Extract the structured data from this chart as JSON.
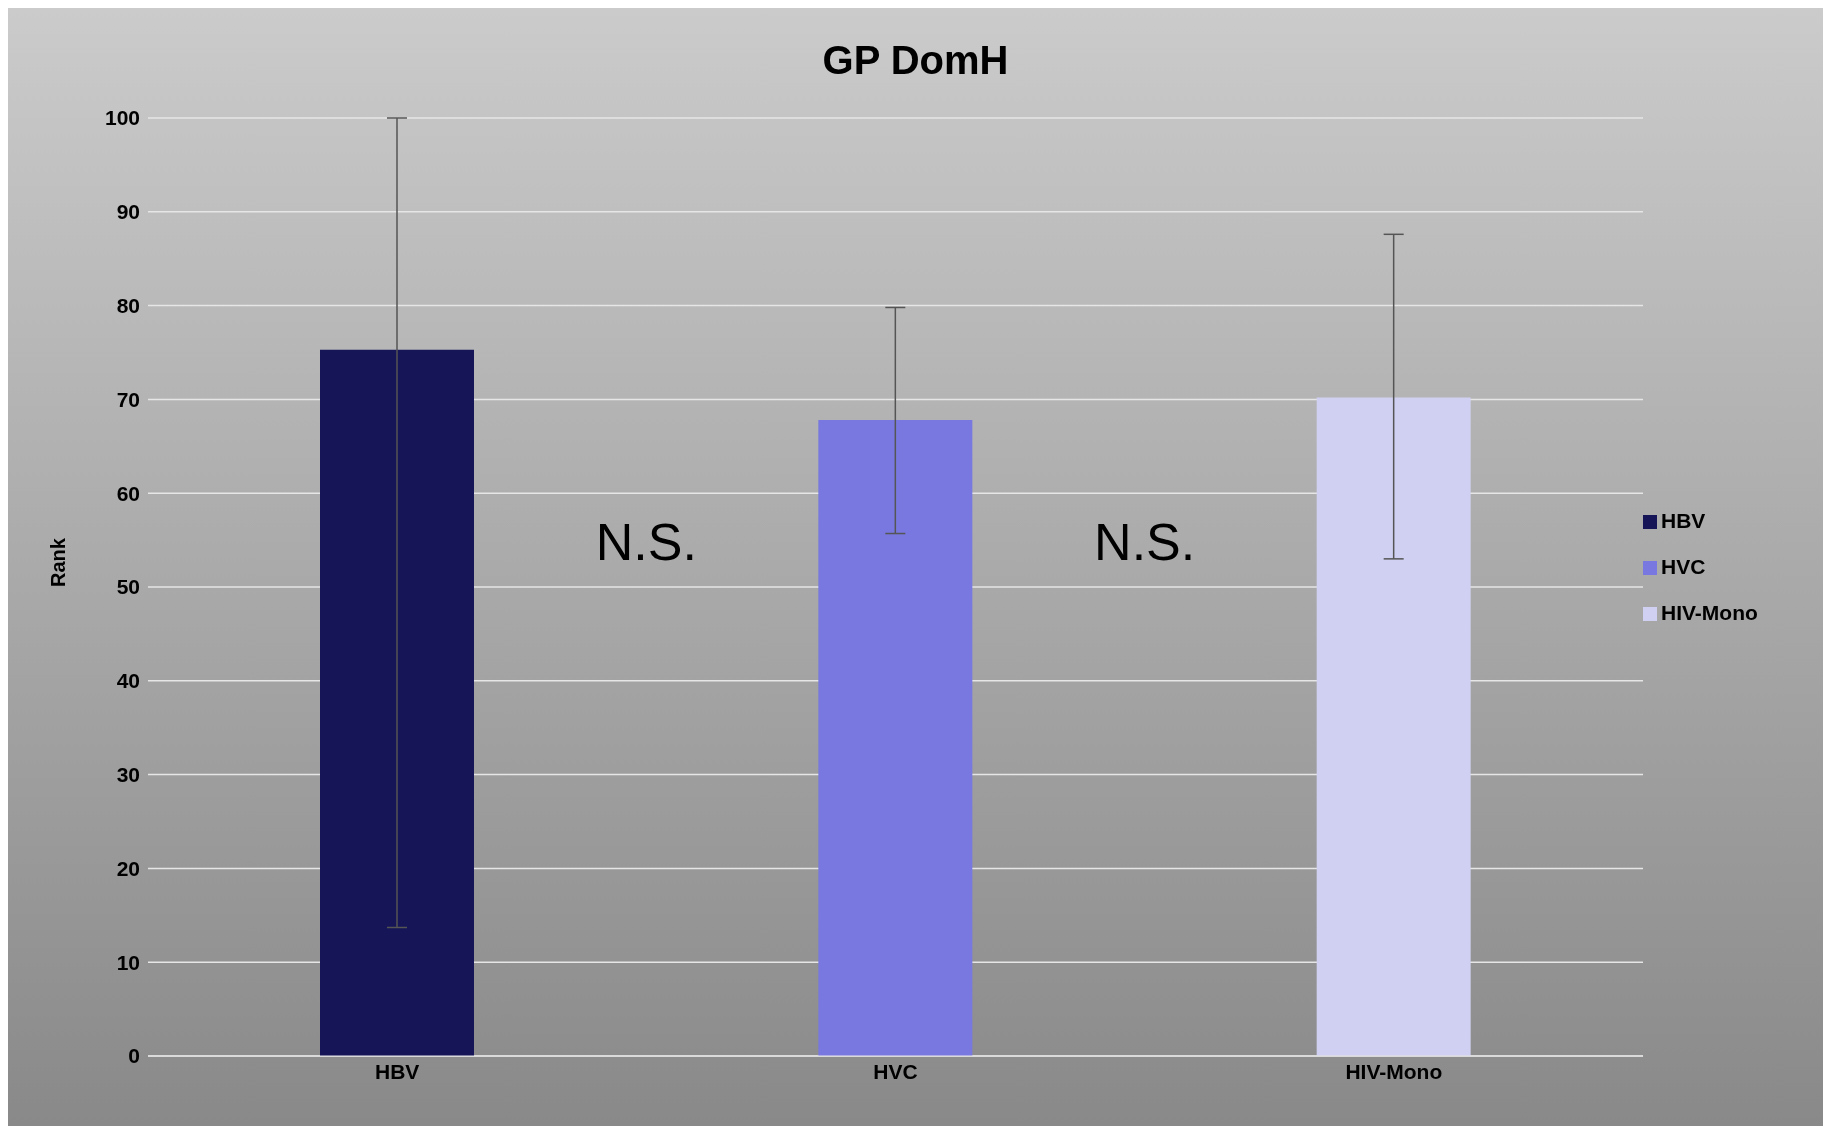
{
  "chart_data": {
    "type": "bar",
    "title": "GP DomH",
    "ylabel": "Rank",
    "categories": [
      "HBV",
      "HVC",
      "HIV-Mono"
    ],
    "series": [
      {
        "name": "HBV",
        "color": "#151558",
        "values": [
          75.3,
          null,
          null
        ],
        "errors": [
          [
            13.7,
            100
          ],
          null,
          null
        ]
      },
      {
        "name": "HVC",
        "color": "#7878e0",
        "values": [
          null,
          67.8,
          null
        ],
        "errors": [
          null,
          [
            55.7,
            79.8
          ],
          null
        ]
      },
      {
        "name": "HIV-Mono",
        "color": "#d0d0f2",
        "values": [
          null,
          null,
          70.2
        ],
        "errors": [
          null,
          null,
          [
            53,
            87.6
          ]
        ]
      }
    ],
    "ylim": [
      0,
      100
    ],
    "yticks": [
      0,
      10,
      20,
      30,
      40,
      50,
      60,
      70,
      80,
      90,
      100
    ],
    "grid": "y",
    "legend": "right",
    "annotations": [
      "N.S.",
      "N.S."
    ]
  }
}
